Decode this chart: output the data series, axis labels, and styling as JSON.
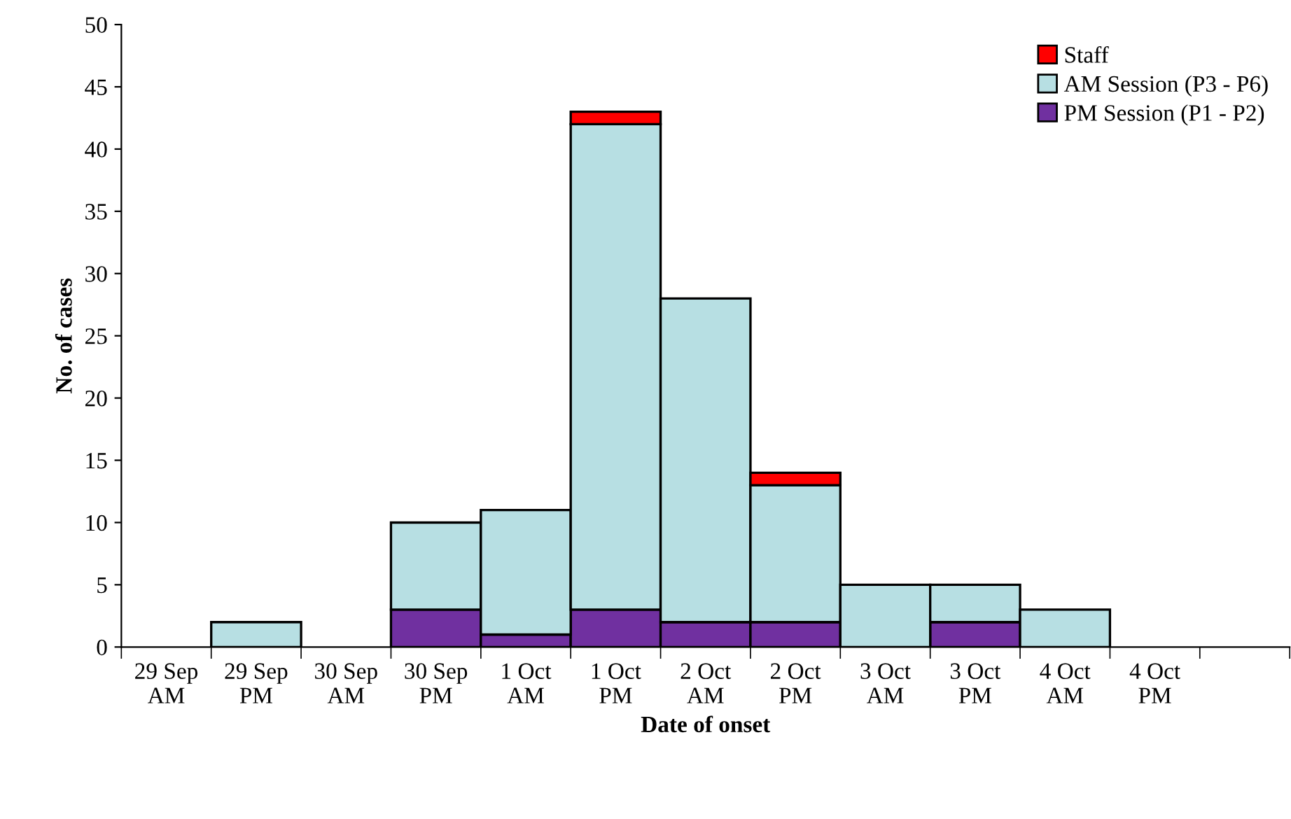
{
  "chart_data": {
    "type": "bar",
    "stacked": true,
    "xlabel": "Date of onset",
    "ylabel": "No. of cases",
    "categories": [
      "29 Sep\nAM",
      "29 Sep\nPM",
      "30 Sep\nAM",
      "30 Sep\nPM",
      "1 Oct\nAM",
      "1 Oct\nPM",
      "2 Oct\nAM",
      "2 Oct\nPM",
      "3 Oct\nAM",
      "3 Oct\nPM",
      "4 Oct\nAM",
      "4 Oct\nPM",
      null
    ],
    "series": [
      {
        "name": "PM Session (P1 - P2)",
        "color": "#7030a0",
        "values": [
          0,
          0,
          0,
          3,
          1,
          3,
          2,
          2,
          0,
          2,
          0,
          0,
          0
        ]
      },
      {
        "name": "AM Session (P3 - P6)",
        "color": "#b7dfe3",
        "values": [
          0,
          2,
          0,
          7,
          10,
          39,
          26,
          11,
          5,
          3,
          3,
          0,
          0
        ]
      },
      {
        "name": "Staff",
        "color": "#ff0000",
        "values": [
          0,
          0,
          0,
          0,
          0,
          1,
          0,
          1,
          0,
          0,
          0,
          0,
          0
        ]
      }
    ],
    "ylim": [
      0,
      50
    ],
    "yticks": [
      0,
      5,
      10,
      15,
      20,
      25,
      30,
      35,
      40,
      45,
      50
    ],
    "grid": false,
    "legend": "top right"
  }
}
